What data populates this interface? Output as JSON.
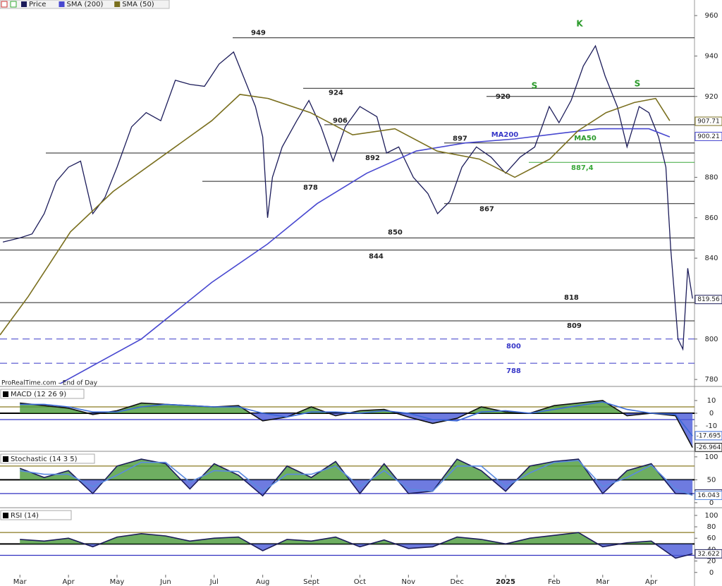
{
  "chart_data": [
    {
      "type": "line",
      "source": "ProRealTime.com - End of Day",
      "xlim": [
        -0.41,
        13.89
      ],
      "ylim": [
        777.6,
        967.7
      ],
      "yticks": [
        960,
        940,
        920,
        900,
        880,
        860,
        840,
        820,
        800,
        780
      ],
      "series": [
        {
          "name": "Price",
          "color": "#1c1c5a",
          "last": 819.56,
          "x": [
            -0.35,
            0,
            0.25,
            0.5,
            0.75,
            1.0,
            1.25,
            1.5,
            1.75,
            2.0,
            2.3,
            2.6,
            2.9,
            3.2,
            3.5,
            3.8,
            4.1,
            4.4,
            4.6,
            4.85,
            5.0,
            5.1,
            5.2,
            5.4,
            5.7,
            5.95,
            6.2,
            6.45,
            6.7,
            7.0,
            7.35,
            7.55,
            7.8,
            8.1,
            8.4,
            8.6,
            8.85,
            9.1,
            9.4,
            9.7,
            10.0,
            10.3,
            10.6,
            10.9,
            11.1,
            11.35,
            11.6,
            11.85,
            12.05,
            12.3,
            12.5,
            12.75,
            12.95,
            13.15,
            13.3,
            13.4,
            13.55,
            13.65,
            13.75,
            13.85
          ],
          "values": [
            848,
            850,
            852,
            862,
            878,
            885,
            888,
            862,
            870,
            885,
            905,
            912,
            908,
            928,
            926,
            925,
            936,
            942,
            930,
            915,
            900,
            860,
            880,
            895,
            908,
            918,
            905,
            888,
            905,
            915,
            910,
            892,
            895,
            880,
            872,
            862,
            868,
            885,
            895,
            890,
            882,
            890,
            895,
            915,
            907,
            918,
            935,
            945,
            930,
            915,
            895,
            915,
            912,
            900,
            885,
            845,
            800,
            795,
            835,
            820
          ]
        },
        {
          "name": "SMA (200)",
          "color": "#4848d0",
          "last": 900.21,
          "x": [
            0.83,
            2.5,
            3.95,
            5.1,
            6.12,
            7.14,
            8.16,
            9.17,
            10.19,
            11.2,
            11.93,
            12.95,
            13.38
          ],
          "values": [
            778,
            800,
            828,
            847,
            867,
            882,
            893,
            897,
            899,
            902,
            904,
            904,
            900
          ]
        },
        {
          "name": "SMA (50)",
          "color": "#7a6f1e",
          "last": 907.71,
          "x": [
            -0.41,
            0.17,
            1.04,
            1.92,
            3.08,
            3.95,
            4.53,
            5.11,
            5.98,
            6.85,
            7.72,
            8.59,
            9.46,
            10.19,
            10.91,
            11.49,
            12.07,
            12.65,
            13.09,
            13.38
          ],
          "values": [
            802,
            821,
            853,
            873,
            893,
            908,
            921,
            919,
            912,
            901,
            904,
            893,
            889,
            880,
            889,
            903,
            912,
            917,
            919,
            908
          ]
        }
      ],
      "levels": [
        949,
        924,
        920,
        906,
        897,
        892,
        878,
        867,
        850,
        844,
        818,
        809,
        800,
        788,
        {
          "value": 887.4,
          "label": "887,4"
        }
      ],
      "level_colors": [
        "#222",
        "#222",
        "#222",
        "#222",
        "#222",
        "#222",
        "#222",
        "#222",
        "#222",
        "#222",
        "#222",
        "#222",
        "#3838c8",
        "#3838c8",
        "#3aa83a"
      ],
      "level_dashed": [
        false,
        false,
        false,
        false,
        false,
        false,
        false,
        false,
        false,
        false,
        false,
        false,
        true,
        true,
        false
      ],
      "annotations": [
        "K",
        "S",
        "S",
        "MA200",
        "MA50"
      ]
    },
    {
      "type": "line",
      "title": "MACD (12 26 9)",
      "xlim": [
        -0.41,
        13.89
      ],
      "ylim": [
        -30,
        20
      ],
      "yticks": [
        10,
        0,
        -10
      ],
      "levels": [
        5,
        0,
        -5
      ],
      "x": [
        0,
        0.5,
        1,
        1.5,
        2,
        2.5,
        3,
        3.5,
        4,
        4.5,
        5,
        5.5,
        6,
        6.5,
        7,
        7.5,
        8,
        8.5,
        9,
        9.5,
        10,
        10.5,
        11,
        11.5,
        12,
        12.5,
        13,
        13.5,
        13.85
      ],
      "series": [
        {
          "color": "#111",
          "fill": true,
          "last": -26.964,
          "values": [
            8,
            6,
            4,
            -1,
            2,
            8,
            7,
            6,
            5,
            6,
            -6,
            -3,
            5,
            -2,
            2,
            3,
            -3,
            -8,
            -4,
            5,
            1,
            0,
            6,
            8,
            10,
            -2,
            0,
            -2,
            -27
          ]
        },
        {
          "color": "#3a6ad8",
          "last": -17.695,
          "values": [
            7,
            7,
            5,
            1,
            1,
            5,
            7,
            6,
            5,
            5,
            0,
            -3,
            1,
            1,
            0,
            2,
            0,
            -5,
            -6,
            1,
            2,
            0,
            3,
            6,
            9,
            3,
            0,
            -1,
            -18
          ]
        }
      ]
    },
    {
      "type": "line",
      "title": "Stochastic (14 3 5)",
      "xlim": [
        -0.41,
        13.89
      ],
      "ylim": [
        -14,
        109
      ],
      "yticks": [
        100,
        50,
        0
      ],
      "levels": [
        80,
        50,
        20
      ],
      "x": [
        0,
        0.5,
        1,
        1.5,
        2,
        2.5,
        3,
        3.5,
        4,
        4.5,
        5,
        5.5,
        6,
        6.5,
        7,
        7.5,
        8,
        8.5,
        9,
        9.5,
        10,
        10.5,
        11,
        11.5,
        12,
        12.5,
        13,
        13.5,
        13.85
      ],
      "series": [
        {
          "color": "#1c1c5a",
          "fill": true,
          "last": 19.21,
          "values": [
            75,
            55,
            70,
            20,
            80,
            95,
            85,
            30,
            85,
            60,
            15,
            80,
            55,
            90,
            20,
            85,
            20,
            25,
            95,
            70,
            25,
            80,
            90,
            95,
            20,
            70,
            85,
            20,
            19.21
          ]
        },
        {
          "color": "#5a8ae0",
          "last": 16.043,
          "values": [
            70,
            62,
            62,
            35,
            60,
            88,
            88,
            45,
            70,
            68,
            25,
            62,
            62,
            80,
            35,
            70,
            30,
            25,
            80,
            80,
            35,
            65,
            88,
            92,
            35,
            55,
            82,
            30,
            16.043
          ]
        }
      ]
    },
    {
      "type": "line",
      "title": "RSI (14)",
      "xlim": [
        -0.41,
        13.89
      ],
      "ylim": [
        -4,
        111
      ],
      "yticks": [
        100,
        80,
        60,
        40,
        20,
        0
      ],
      "levels": [
        70,
        50,
        30
      ],
      "xticks": [
        {
          "value": 0,
          "label": "Mar"
        },
        {
          "value": 1,
          "label": "Apr"
        },
        {
          "value": 2,
          "label": "May"
        },
        {
          "value": 3,
          "label": "Jun"
        },
        {
          "value": 4,
          "label": "Jul"
        },
        {
          "value": 5,
          "label": "Aug"
        },
        {
          "value": 6,
          "label": "Sept"
        },
        {
          "value": 7,
          "label": "Oct"
        },
        {
          "value": 8,
          "label": "Nov"
        },
        {
          "value": 9,
          "label": "Dec"
        },
        {
          "value": 10,
          "label": "2025"
        },
        {
          "value": 11,
          "label": "Feb"
        },
        {
          "value": 12,
          "label": "Mar"
        },
        {
          "value": 13,
          "label": "Apr"
        }
      ],
      "x": [
        0,
        0.5,
        1,
        1.5,
        2,
        2.5,
        3,
        3.5,
        4,
        4.5,
        5,
        5.5,
        6,
        6.5,
        7,
        7.5,
        8,
        8.5,
        9,
        9.5,
        10,
        10.5,
        11,
        11.5,
        12,
        12.5,
        13,
        13.5,
        13.85
      ],
      "series": [
        {
          "color": "#1c1c5a",
          "fill": true,
          "last": 32.622,
          "values": [
            58,
            55,
            60,
            45,
            62,
            68,
            64,
            55,
            60,
            62,
            38,
            58,
            55,
            62,
            45,
            57,
            42,
            45,
            62,
            58,
            50,
            60,
            65,
            70,
            45,
            52,
            55,
            25,
            32.622
          ]
        }
      ]
    }
  ]
}
